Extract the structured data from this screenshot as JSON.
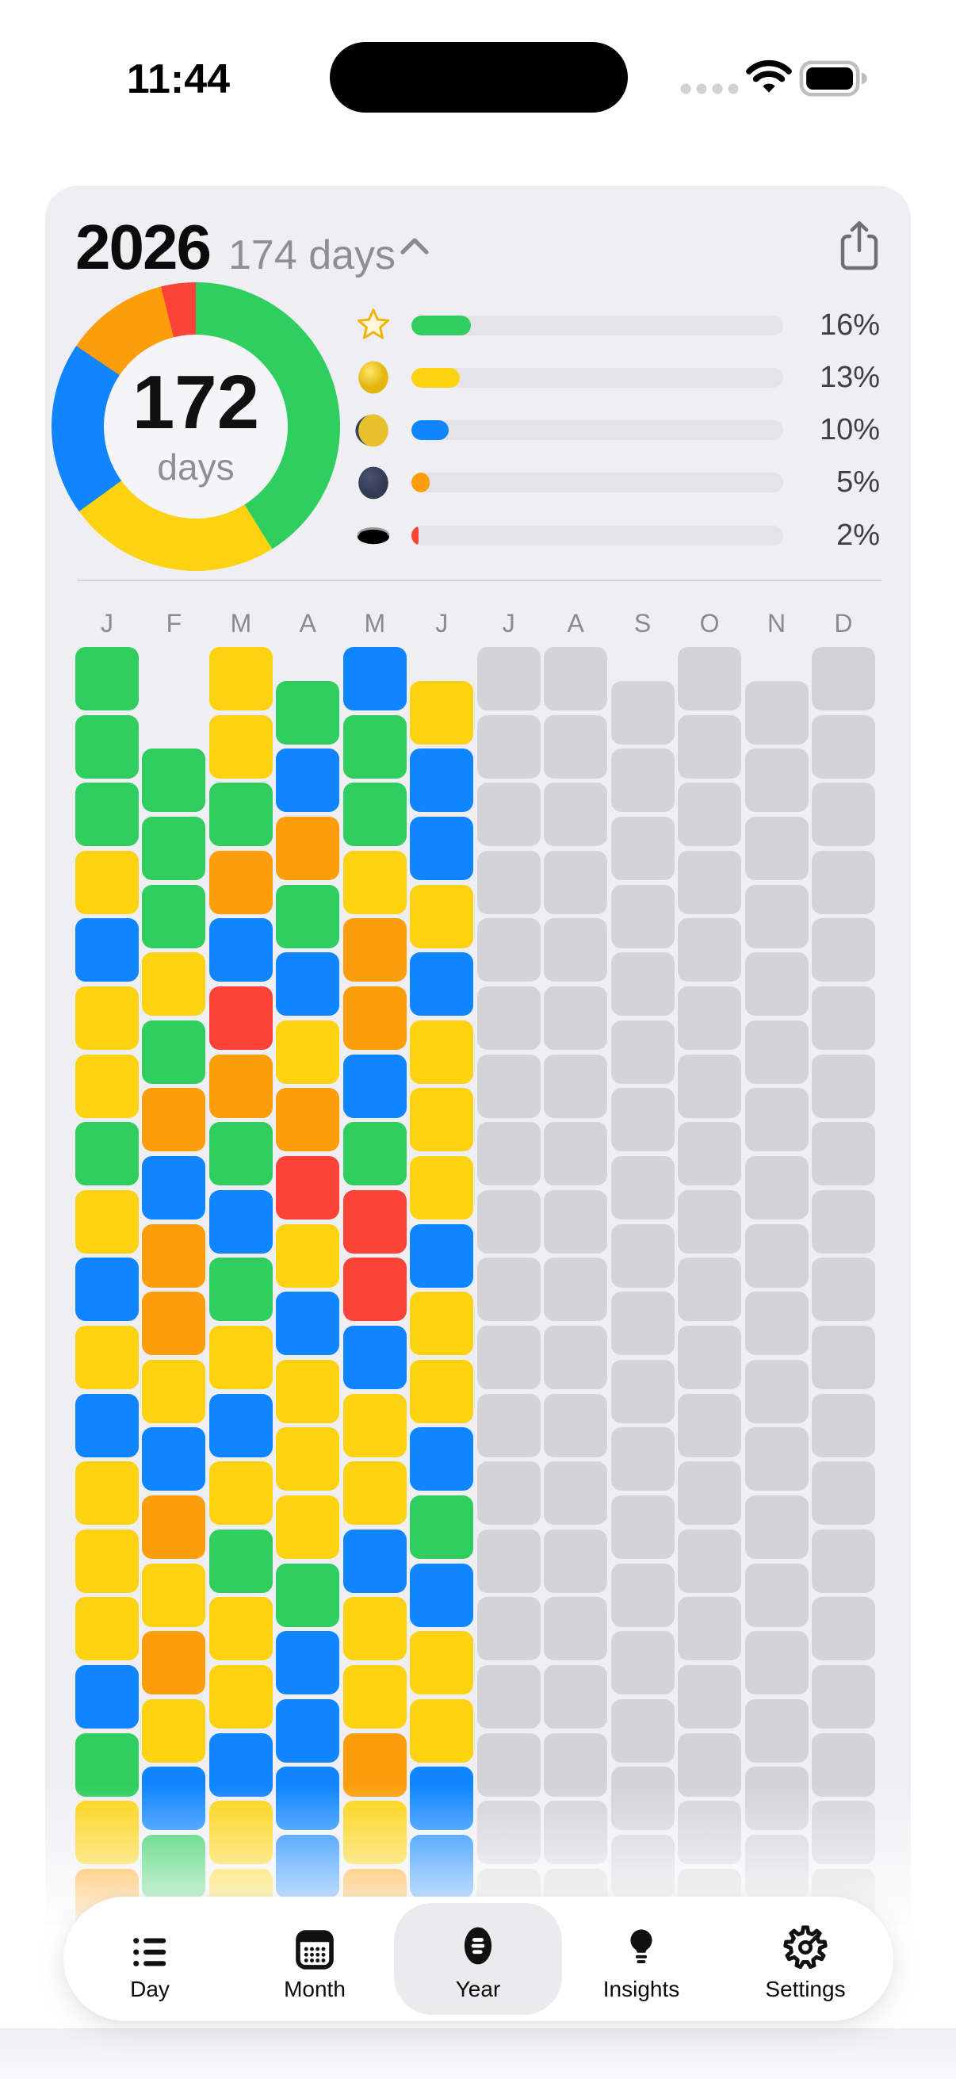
{
  "status_bar": {
    "time": "11:44",
    "icons": [
      "cellular-dots-icon",
      "wifi-icon",
      "battery-icon"
    ]
  },
  "header": {
    "year": "2026",
    "subtitle": "174 days",
    "chevron_icon": "chevron-up-icon",
    "share_icon": "share-icon"
  },
  "chart_data": {
    "type": "pie",
    "style": "donut",
    "center_value": "172",
    "center_label": "days",
    "legend_position": "right",
    "segments": [
      {
        "mood": "star",
        "icon": "star-icon",
        "color": "#2FCE5E",
        "angle_deg": 148,
        "legend_pct": 16,
        "legend_pct_label": "16%"
      },
      {
        "mood": "full-moon",
        "icon": "full-moon-icon",
        "color": "#FCD211",
        "angle_deg": 86,
        "legend_pct": 13,
        "legend_pct_label": "13%"
      },
      {
        "mood": "half-moon",
        "icon": "half-moon-icon",
        "color": "#0F85FF",
        "angle_deg": 70,
        "legend_pct": 10,
        "legend_pct_label": "10%"
      },
      {
        "mood": "new-moon",
        "icon": "new-moon-icon",
        "color": "#FC9E0C",
        "angle_deg": 42,
        "legend_pct": 5,
        "legend_pct_label": "5%"
      },
      {
        "mood": "hole",
        "icon": "hole-icon",
        "color": "#FC4337",
        "angle_deg": 14,
        "legend_pct": 2,
        "legend_pct_label": "2%"
      }
    ]
  },
  "grid": {
    "month_labels": [
      "J",
      "F",
      "M",
      "A",
      "M",
      "J",
      "J",
      "A",
      "S",
      "O",
      "N",
      "D"
    ],
    "cell_colors": {
      "green": "#2FCE5E",
      "yellow": "#FCD211",
      "blue": "#0F85FF",
      "orange": "#FC9E0C",
      "red": "#FC4337",
      "empty": "#D3D3D8"
    },
    "columns": [
      {
        "id": "jan",
        "label": "J",
        "offset_rows": 0,
        "cells": [
          "green",
          "green",
          "green",
          "yellow",
          "blue",
          "yellow",
          "yellow",
          "green",
          "yellow",
          "blue",
          "yellow",
          "blue",
          "yellow",
          "yellow",
          "yellow",
          "blue",
          "green",
          "yellow",
          "orange"
        ]
      },
      {
        "id": "feb",
        "label": "F",
        "offset_rows": 1.5,
        "cells": [
          "green",
          "green",
          "green",
          "yellow",
          "green",
          "orange",
          "blue",
          "orange",
          "orange",
          "yellow",
          "blue",
          "orange",
          "yellow",
          "orange",
          "yellow",
          "blue",
          "green"
        ]
      },
      {
        "id": "mar",
        "label": "M",
        "offset_rows": 0,
        "cells": [
          "yellow",
          "yellow",
          "green",
          "orange",
          "blue",
          "red",
          "orange",
          "green",
          "blue",
          "green",
          "yellow",
          "blue",
          "yellow",
          "green",
          "yellow",
          "yellow",
          "blue",
          "yellow",
          "yellow"
        ]
      },
      {
        "id": "apr",
        "label": "A",
        "offset_rows": 0.5,
        "cells": [
          "green",
          "blue",
          "orange",
          "green",
          "blue",
          "yellow",
          "orange",
          "red",
          "yellow",
          "blue",
          "yellow",
          "yellow",
          "yellow",
          "green",
          "blue",
          "blue",
          "blue",
          "blue"
        ]
      },
      {
        "id": "may",
        "label": "M",
        "offset_rows": 0,
        "cells": [
          "blue",
          "green",
          "green",
          "yellow",
          "orange",
          "orange",
          "blue",
          "green",
          "red",
          "red",
          "blue",
          "yellow",
          "yellow",
          "blue",
          "yellow",
          "yellow",
          "orange",
          "yellow",
          "orange"
        ]
      },
      {
        "id": "jun",
        "label": "J",
        "offset_rows": 0.5,
        "cells": [
          "yellow",
          "blue",
          "blue",
          "yellow",
          "blue",
          "yellow",
          "yellow",
          "yellow",
          "blue",
          "yellow",
          "yellow",
          "blue",
          "green",
          "blue",
          "yellow",
          "yellow",
          "blue",
          "blue"
        ]
      },
      {
        "id": "jul",
        "label": "J",
        "offset_rows": 0,
        "cells": [
          "empty",
          "empty",
          "empty",
          "empty",
          "empty",
          "empty",
          "empty",
          "empty",
          "empty",
          "empty",
          "empty",
          "empty",
          "empty",
          "empty",
          "empty",
          "empty",
          "empty",
          "empty",
          "empty"
        ]
      },
      {
        "id": "aug",
        "label": "A",
        "offset_rows": 0,
        "cells": [
          "empty",
          "empty",
          "empty",
          "empty",
          "empty",
          "empty",
          "empty",
          "empty",
          "empty",
          "empty",
          "empty",
          "empty",
          "empty",
          "empty",
          "empty",
          "empty",
          "empty",
          "empty",
          "empty"
        ]
      },
      {
        "id": "sep",
        "label": "S",
        "offset_rows": 0.5,
        "cells": [
          "empty",
          "empty",
          "empty",
          "empty",
          "empty",
          "empty",
          "empty",
          "empty",
          "empty",
          "empty",
          "empty",
          "empty",
          "empty",
          "empty",
          "empty",
          "empty",
          "empty",
          "empty"
        ]
      },
      {
        "id": "oct",
        "label": "O",
        "offset_rows": 0,
        "cells": [
          "empty",
          "empty",
          "empty",
          "empty",
          "empty",
          "empty",
          "empty",
          "empty",
          "empty",
          "empty",
          "empty",
          "empty",
          "empty",
          "empty",
          "empty",
          "empty",
          "empty",
          "empty",
          "empty"
        ]
      },
      {
        "id": "nov",
        "label": "N",
        "offset_rows": 0.5,
        "cells": [
          "empty",
          "empty",
          "empty",
          "empty",
          "empty",
          "empty",
          "empty",
          "empty",
          "empty",
          "empty",
          "empty",
          "empty",
          "empty",
          "empty",
          "empty",
          "empty",
          "empty",
          "empty"
        ]
      },
      {
        "id": "dec",
        "label": "D",
        "offset_rows": 0,
        "cells": [
          "empty",
          "empty",
          "empty",
          "empty",
          "empty",
          "empty",
          "empty",
          "empty",
          "empty",
          "empty",
          "empty",
          "empty",
          "empty",
          "empty",
          "empty",
          "empty",
          "empty",
          "empty",
          "empty"
        ]
      }
    ]
  },
  "tab_bar": {
    "active": "year",
    "items": [
      {
        "id": "day",
        "label": "Day",
        "icon": "list-icon"
      },
      {
        "id": "month",
        "label": "Month",
        "icon": "calendar-icon"
      },
      {
        "id": "year",
        "label": "Year",
        "icon": "year-grid-icon"
      },
      {
        "id": "insights",
        "label": "Insights",
        "icon": "bulb-icon"
      },
      {
        "id": "settings",
        "label": "Settings",
        "icon": "gear-icon"
      }
    ]
  }
}
